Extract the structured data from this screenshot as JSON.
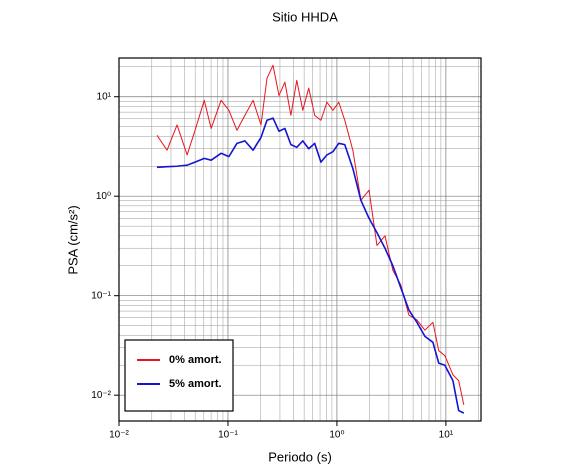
{
  "chart_data": {
    "type": "line",
    "title": "Sitio HHDA",
    "xlabel": "Periodo (s)",
    "ylabel": "PSA (cm/s²)",
    "xscale": "log",
    "yscale": "log",
    "grid": true,
    "minor_grid": true,
    "legend": "lower left",
    "xlim": [
      0.01,
      21
    ],
    "ylim": [
      0.0055,
      24.5
    ],
    "xticks": [
      {
        "value": 0.01,
        "label": "10⁻²"
      },
      {
        "value": 0.1,
        "label": "10⁻¹"
      },
      {
        "value": 1,
        "label": "10⁰"
      },
      {
        "value": 10,
        "label": "10¹"
      }
    ],
    "yticks": [
      {
        "value": 0.01,
        "label": "10⁻²"
      },
      {
        "value": 0.1,
        "label": "10⁻¹"
      },
      {
        "value": 1,
        "label": "10⁰"
      },
      {
        "value": 10,
        "label": "10¹"
      }
    ],
    "x": [
      0.0223,
      0.0276,
      0.0341,
      0.0422,
      0.0499,
      0.0606,
      0.0701,
      0.0865,
      0.102,
      0.121,
      0.143,
      0.17,
      0.201,
      0.228,
      0.259,
      0.294,
      0.333,
      0.378,
      0.428,
      0.486,
      0.551,
      0.625,
      0.713,
      0.81,
      0.919,
      1.04,
      1.18,
      1.4,
      1.66,
      1.97,
      2.33,
      2.76,
      3.26,
      3.86,
      4.57,
      5.42,
      6.42,
      7.6,
      8.6,
      9.78,
      11.6,
      13.1,
      14.6
    ],
    "series": [
      {
        "name": "0% amort.",
        "color": "#e8141e",
        "width": 1,
        "values": [
          4.1,
          2.9,
          5.2,
          2.6,
          4.6,
          9.2,
          4.8,
          9.2,
          7.3,
          4.6,
          6.5,
          9.2,
          5.2,
          15.3,
          20.7,
          10.3,
          14,
          6.5,
          14.6,
          7.3,
          12.2,
          6.5,
          5.8,
          8.8,
          7.3,
          8.8,
          5.8,
          2.9,
          0.91,
          1.15,
          0.32,
          0.4,
          0.18,
          0.128,
          0.064,
          0.057,
          0.045,
          0.054,
          0.028,
          0.025,
          0.016,
          0.014,
          0.008
        ]
      },
      {
        "name": "5% amort.",
        "color": "#1414d2",
        "width": 1.6,
        "values": [
          1.95,
          1.98,
          2.0,
          2.05,
          2.2,
          2.4,
          2.3,
          2.7,
          2.5,
          3.4,
          3.6,
          2.9,
          3.9,
          5.8,
          6.1,
          4.5,
          4.8,
          3.3,
          3.1,
          3.6,
          3.0,
          3.4,
          2.2,
          2.6,
          2.8,
          3.4,
          3.3,
          1.9,
          0.91,
          0.6,
          0.43,
          0.3,
          0.2,
          0.12,
          0.072,
          0.054,
          0.039,
          0.034,
          0.021,
          0.02,
          0.014,
          0.007,
          0.0066
        ]
      }
    ]
  }
}
